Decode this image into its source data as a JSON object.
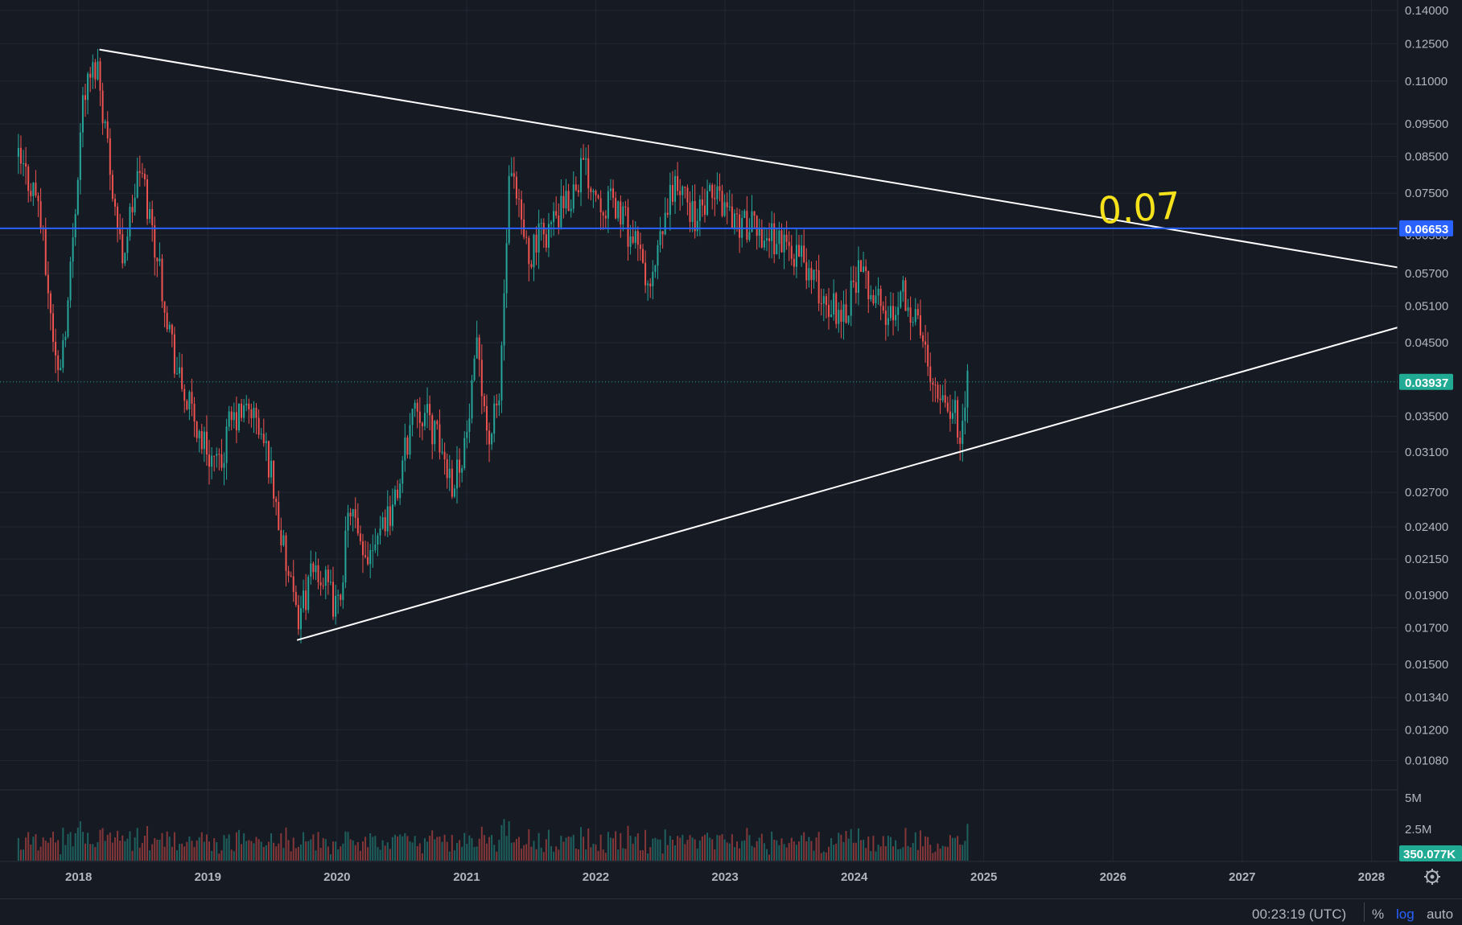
{
  "chart_data": {
    "type": "candlestick",
    "y_scale": "log",
    "y_range": [
      0.0101,
      0.1451
    ],
    "x_range": [
      "2017-05-24",
      "2028-03-15"
    ],
    "price_ticks": [
      "0.14000",
      "0.12500",
      "0.11000",
      "0.09500",
      "0.08500",
      "0.07500",
      "0.06500",
      "0.05700",
      "0.05100",
      "0.04500",
      "0.03500",
      "0.03100",
      "0.02700",
      "0.02400",
      "0.02150",
      "0.01900",
      "0.01700",
      "0.01500",
      "0.01340",
      "0.01200",
      "0.01080"
    ],
    "year_labels": [
      "2018",
      "2019",
      "2020",
      "2021",
      "2022",
      "2023",
      "2024",
      "2025",
      "2026",
      "2027",
      "2028"
    ],
    "volume_ticks": [
      "5M",
      "2.5M"
    ],
    "current_price": "0.03937",
    "horizontal_level": "0.06653",
    "current_volume": "350.077K",
    "annotation": "0.07",
    "trendlines": [
      {
        "name": "descending-resistance",
        "from": [
          "2018-03-01",
          0.1225
        ],
        "to": [
          "2028-06-01",
          0.0573
        ]
      },
      {
        "name": "ascending-support",
        "from": [
          "2019-09-10",
          0.0163
        ],
        "to": [
          "2028-06-01",
          0.0487
        ]
      }
    ],
    "anchors": [
      [
        "2017-07-15",
        0.085
      ],
      [
        "2017-09-15",
        0.074
      ],
      [
        "2017-11-10",
        0.04
      ],
      [
        "2017-12-10",
        0.052
      ],
      [
        "2018-01-20",
        0.104
      ],
      [
        "2018-03-01",
        0.118
      ],
      [
        "2018-05-10",
        0.06
      ],
      [
        "2018-07-01",
        0.082
      ],
      [
        "2018-08-20",
        0.06
      ],
      [
        "2018-10-15",
        0.04
      ],
      [
        "2018-12-15",
        0.033
      ],
      [
        "2019-02-10",
        0.029
      ],
      [
        "2019-03-10",
        0.034
      ],
      [
        "2019-05-10",
        0.036
      ],
      [
        "2019-07-01",
        0.03
      ],
      [
        "2019-08-10",
        0.022
      ],
      [
        "2019-09-15",
        0.0175
      ],
      [
        "2019-11-10",
        0.021
      ],
      [
        "2020-01-10",
        0.018
      ],
      [
        "2020-02-15",
        0.026
      ],
      [
        "2020-03-20",
        0.021
      ],
      [
        "2020-05-01",
        0.024
      ],
      [
        "2020-06-20",
        0.026
      ],
      [
        "2020-08-15",
        0.037
      ],
      [
        "2020-10-01",
        0.034
      ],
      [
        "2020-12-01",
        0.028
      ],
      [
        "2021-01-10",
        0.033
      ],
      [
        "2021-02-10",
        0.045
      ],
      [
        "2021-03-10",
        0.032
      ],
      [
        "2021-04-10",
        0.037
      ],
      [
        "2021-05-10",
        0.08
      ],
      [
        "2021-07-01",
        0.061
      ],
      [
        "2021-08-20",
        0.066
      ],
      [
        "2021-10-20",
        0.072
      ],
      [
        "2021-12-01",
        0.083
      ],
      [
        "2022-01-20",
        0.074
      ],
      [
        "2022-03-15",
        0.071
      ],
      [
        "2022-05-15",
        0.06
      ],
      [
        "2022-06-10",
        0.053
      ],
      [
        "2022-08-15",
        0.078
      ],
      [
        "2022-10-20",
        0.069
      ],
      [
        "2022-12-15",
        0.075
      ],
      [
        "2023-02-15",
        0.068
      ],
      [
        "2023-04-10",
        0.066
      ],
      [
        "2023-06-10",
        0.064
      ],
      [
        "2023-08-15",
        0.06
      ],
      [
        "2023-10-15",
        0.052
      ],
      [
        "2023-12-10",
        0.05
      ],
      [
        "2024-01-15",
        0.057
      ],
      [
        "2024-03-01",
        0.054
      ],
      [
        "2024-04-15",
        0.048
      ],
      [
        "2024-05-20",
        0.055
      ],
      [
        "2024-07-10",
        0.047
      ],
      [
        "2024-08-20",
        0.04
      ],
      [
        "2024-10-10",
        0.036
      ],
      [
        "2024-11-01",
        0.0335
      ],
      [
        "2024-11-20",
        0.0394
      ]
    ]
  }
}
